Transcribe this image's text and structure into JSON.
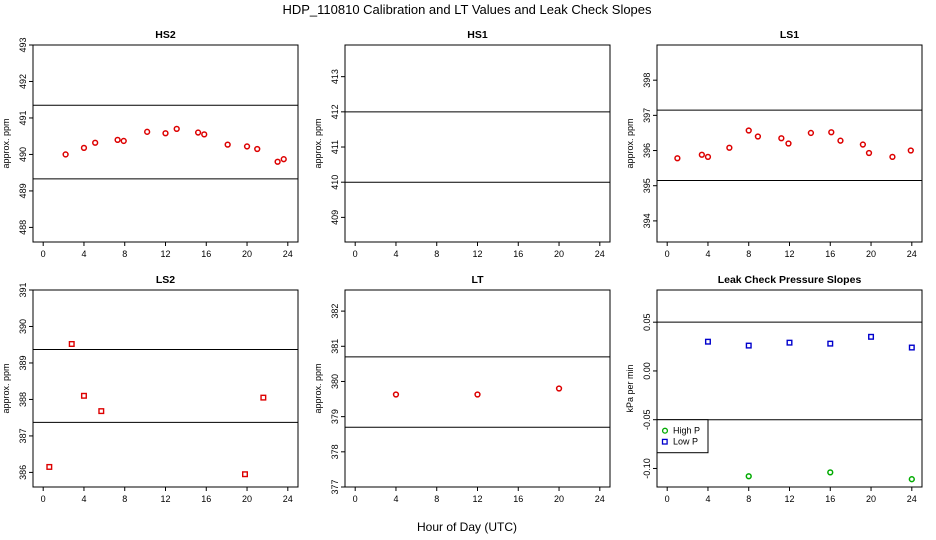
{
  "figure": {
    "title": "HDP_110810  Calibration and LT Values and Leak Check Slopes",
    "xlabel": "Hour of Day (UTC)"
  },
  "chart_data": [
    {
      "type": "scatter",
      "title": "HS2",
      "ylabel": "approx. ppm",
      "xlim": [
        -1,
        25
      ],
      "ylim": [
        487.6,
        493
      ],
      "xticks": [
        0,
        4,
        8,
        12,
        16,
        20,
        24
      ],
      "yticks": [
        488,
        489,
        490,
        491,
        492,
        493
      ],
      "hlines": [
        489.33,
        491.35
      ],
      "series": [
        {
          "color": "#dd0000",
          "marker": "circle",
          "points": [
            [
              2.2,
              490.0
            ],
            [
              4.0,
              490.18
            ],
            [
              5.1,
              490.32
            ],
            [
              7.3,
              490.4
            ],
            [
              7.9,
              490.37
            ],
            [
              10.2,
              490.62
            ],
            [
              12.0,
              490.58
            ],
            [
              13.1,
              490.7
            ],
            [
              15.2,
              490.6
            ],
            [
              15.8,
              490.55
            ],
            [
              18.1,
              490.27
            ],
            [
              20.0,
              490.22
            ],
            [
              21.0,
              490.15
            ],
            [
              23.0,
              489.8
            ],
            [
              23.6,
              489.87
            ]
          ]
        }
      ]
    },
    {
      "type": "scatter",
      "title": "HS1",
      "ylabel": "approx. ppm",
      "xlim": [
        -1,
        25
      ],
      "ylim": [
        408.3,
        413.9
      ],
      "xticks": [
        0,
        4,
        8,
        12,
        16,
        20,
        24
      ],
      "yticks": [
        409,
        410,
        411,
        412,
        413
      ],
      "hlines": [
        410.0,
        412.0
      ],
      "series": []
    },
    {
      "type": "scatter",
      "title": "LS1",
      "ylabel": "approx. ppm",
      "xlim": [
        -1,
        25
      ],
      "ylim": [
        393.4,
        399.0
      ],
      "xticks": [
        0,
        4,
        8,
        12,
        16,
        20,
        24
      ],
      "yticks": [
        394,
        395,
        396,
        397,
        398
      ],
      "hlines": [
        395.15,
        397.15
      ],
      "series": [
        {
          "color": "#dd0000",
          "marker": "circle",
          "points": [
            [
              1.0,
              395.78
            ],
            [
              3.4,
              395.88
            ],
            [
              4.0,
              395.82
            ],
            [
              6.1,
              396.08
            ],
            [
              8.0,
              396.57
            ],
            [
              8.9,
              396.4
            ],
            [
              11.2,
              396.35
            ],
            [
              11.9,
              396.2
            ],
            [
              14.1,
              396.5
            ],
            [
              16.1,
              396.52
            ],
            [
              17.0,
              396.28
            ],
            [
              19.2,
              396.17
            ],
            [
              19.8,
              395.93
            ],
            [
              22.1,
              395.82
            ],
            [
              23.9,
              396.0
            ]
          ]
        }
      ]
    },
    {
      "type": "scatter",
      "title": "LS2",
      "ylabel": "approx. ppm",
      "xlim": [
        -1,
        25
      ],
      "ylim": [
        385.6,
        391.0
      ],
      "xticks": [
        0,
        4,
        8,
        12,
        16,
        20,
        24
      ],
      "yticks": [
        386,
        387,
        388,
        389,
        390,
        391
      ],
      "hlines": [
        387.37,
        389.37
      ],
      "series": [
        {
          "color": "#dd0000",
          "marker": "square",
          "points": [
            [
              0.6,
              386.15
            ],
            [
              2.8,
              389.52
            ],
            [
              4.0,
              388.1
            ],
            [
              5.7,
              387.68
            ],
            [
              19.8,
              385.95
            ],
            [
              21.6,
              388.05
            ]
          ]
        }
      ]
    },
    {
      "type": "scatter",
      "title": "LT",
      "ylabel": "approx. ppm",
      "xlim": [
        -1,
        25
      ],
      "ylim": [
        377,
        382.6
      ],
      "xticks": [
        0,
        4,
        8,
        12,
        16,
        20,
        24
      ],
      "yticks": [
        377,
        378,
        379,
        380,
        381,
        382
      ],
      "hlines": [
        378.7,
        380.7
      ],
      "series": [
        {
          "color": "#dd0000",
          "marker": "circle",
          "points": [
            [
              4.0,
              379.63
            ],
            [
              12.0,
              379.63
            ],
            [
              20.0,
              379.8
            ]
          ]
        }
      ]
    },
    {
      "type": "scatter",
      "title": "Leak Check Pressure Slopes",
      "ylabel": "kPa per min",
      "xlim": [
        -1,
        25
      ],
      "ylim": [
        -0.119,
        0.083
      ],
      "xticks": [
        0,
        4,
        8,
        12,
        16,
        20,
        24
      ],
      "yticks": [
        -0.1,
        -0.05,
        0.0,
        0.05
      ],
      "ytick_labels": [
        "-0.10",
        "-0.05",
        "0.00",
        "0.05"
      ],
      "hlines": [
        -0.05,
        0.05
      ],
      "legend": {
        "position": "bottom-left"
      },
      "series": [
        {
          "name": "High P",
          "color": "#00aa00",
          "marker": "circle",
          "points": [
            [
              8.0,
              -0.108
            ],
            [
              16.0,
              -0.104
            ],
            [
              24.0,
              -0.111
            ]
          ]
        },
        {
          "name": "Low P",
          "color": "#0000cc",
          "marker": "square",
          "points": [
            [
              4.0,
              0.03
            ],
            [
              8.0,
              0.026
            ],
            [
              12.0,
              0.029
            ],
            [
              16.0,
              0.028
            ],
            [
              20.0,
              0.035
            ],
            [
              24.0,
              0.024
            ]
          ]
        }
      ]
    }
  ]
}
